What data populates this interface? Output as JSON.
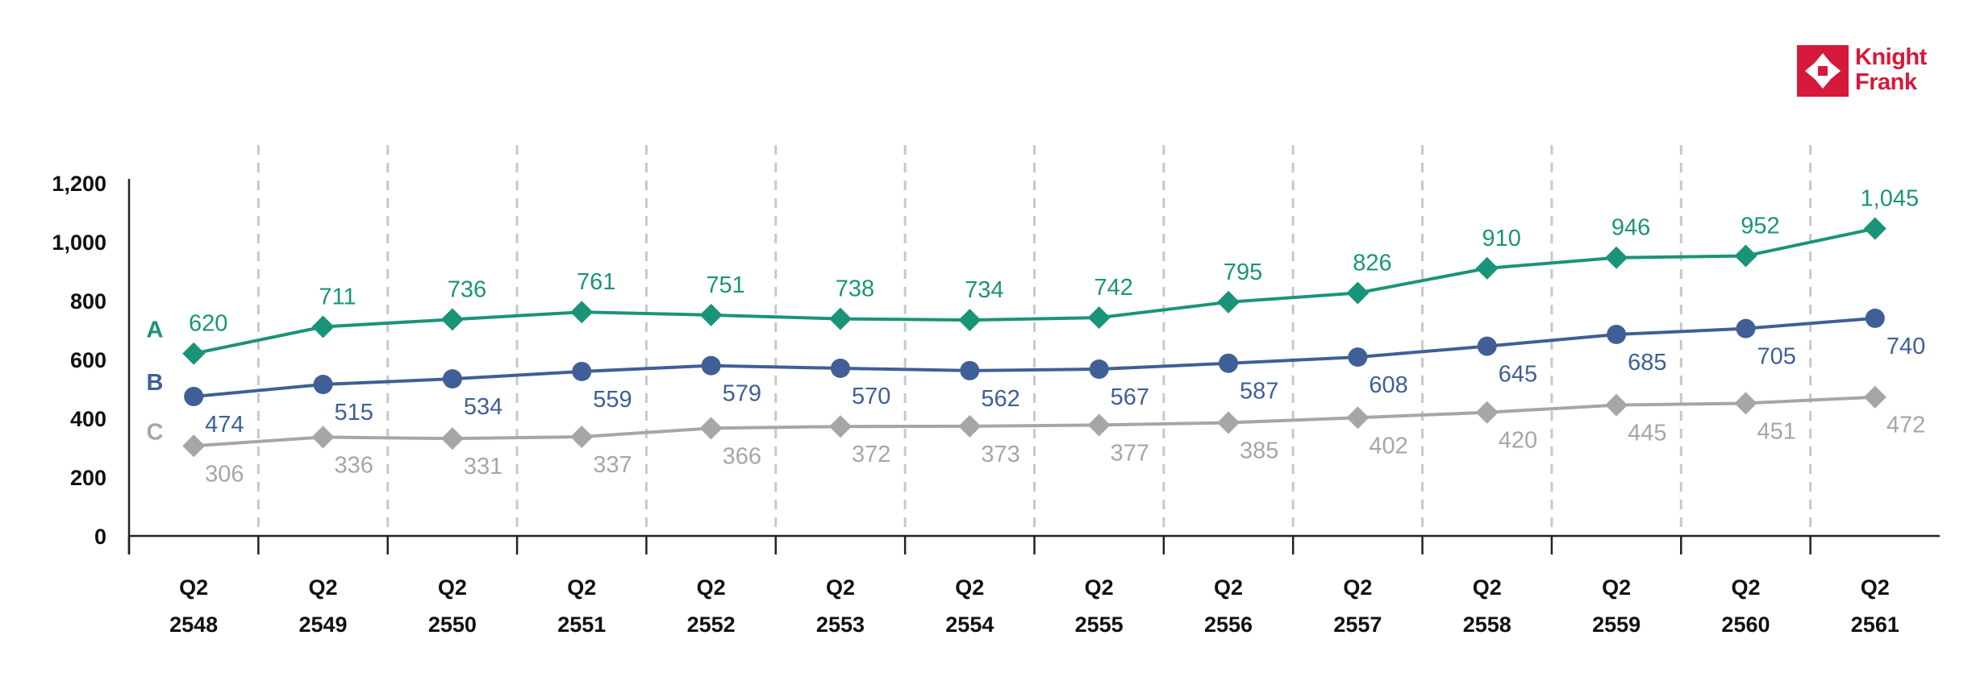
{
  "brand": {
    "line1": "Knight",
    "line2": "Frank",
    "color": "#d6193a"
  },
  "chart_data": {
    "type": "line",
    "categories": [
      [
        "Q2",
        "2548"
      ],
      [
        "Q2",
        "2549"
      ],
      [
        "Q2",
        "2550"
      ],
      [
        "Q2",
        "2551"
      ],
      [
        "Q2",
        "2552"
      ],
      [
        "Q2",
        "2553"
      ],
      [
        "Q2",
        "2554"
      ],
      [
        "Q2",
        "2555"
      ],
      [
        "Q2",
        "2556"
      ],
      [
        "Q2",
        "2557"
      ],
      [
        "Q2",
        "2558"
      ],
      [
        "Q2",
        "2559"
      ],
      [
        "Q2",
        "2560"
      ],
      [
        "Q2",
        "2561"
      ]
    ],
    "ylim": [
      0,
      1200
    ],
    "yticks": [
      0,
      200,
      400,
      600,
      800,
      1000,
      1200
    ],
    "ytick_labels": [
      "0",
      "200",
      "400",
      "600",
      "800",
      "1,000",
      "1,200"
    ],
    "xlabel": "",
    "ylabel": "",
    "title": "",
    "grid": "vertical dashed separators between categories",
    "series": [
      {
        "name": "A",
        "color": "#1a9479",
        "marker": "diamond",
        "values": [
          620,
          711,
          736,
          761,
          751,
          738,
          734,
          742,
          795,
          826,
          910,
          946,
          952,
          1045
        ],
        "value_labels": [
          "620",
          "711",
          "736",
          "761",
          "751",
          "738",
          "734",
          "742",
          "795",
          "826",
          "910",
          "946",
          "952",
          "1,045"
        ],
        "label_position": "above"
      },
      {
        "name": "B",
        "color": "#3f5f96",
        "marker": "circle",
        "values": [
          474,
          515,
          534,
          559,
          579,
          570,
          562,
          567,
          587,
          608,
          645,
          685,
          705,
          740
        ],
        "value_labels": [
          "474",
          "515",
          "534",
          "559",
          "579",
          "570",
          "562",
          "567",
          "587",
          "608",
          "645",
          "685",
          "705",
          "740"
        ],
        "label_position": "below-right"
      },
      {
        "name": "C",
        "color": "#a6a6a8",
        "marker": "diamond",
        "values": [
          306,
          336,
          331,
          337,
          366,
          372,
          373,
          377,
          385,
          402,
          420,
          445,
          451,
          472
        ],
        "value_labels": [
          "306",
          "336",
          "331",
          "337",
          "366",
          "372",
          "373",
          "377",
          "385",
          "402",
          "420",
          "445",
          "451",
          "472"
        ],
        "label_position": "below-right"
      }
    ]
  }
}
